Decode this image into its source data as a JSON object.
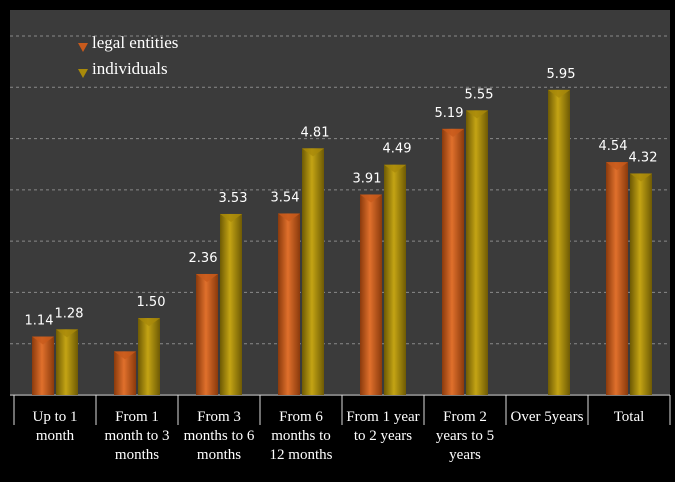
{
  "chart_data": {
    "type": "bar",
    "categories": [
      "Up to 1 month",
      "From 1 month to 3 months",
      "From 3 months to 6 months",
      "From 6 months to 12 months",
      "From 1 year to 2 years",
      "From 2 years to 5 years",
      "Over 5years",
      "Total"
    ],
    "series": [
      {
        "name": "legal entities",
        "color": "#c85a1c",
        "values": [
          1.14,
          0.85,
          2.36,
          3.54,
          3.91,
          5.19,
          null,
          4.54
        ],
        "value_labels": [
          "1.14",
          null,
          "2.36",
          "3.54",
          "3.91",
          "5.19",
          null,
          "4.54"
        ]
      },
      {
        "name": "individuals",
        "color": "#a98a0a",
        "values": [
          1.28,
          1.5,
          3.53,
          4.81,
          4.49,
          5.55,
          5.95,
          4.32
        ],
        "value_labels": [
          "1.28",
          "1.50",
          "3.53",
          "4.81",
          "4.49",
          "5.55",
          "5.95",
          "4.32"
        ]
      }
    ],
    "ylim": [
      0,
      7
    ],
    "yticks": [
      0,
      1,
      2,
      3,
      4,
      5,
      6,
      7
    ],
    "grid": true,
    "legend": "top-left"
  }
}
